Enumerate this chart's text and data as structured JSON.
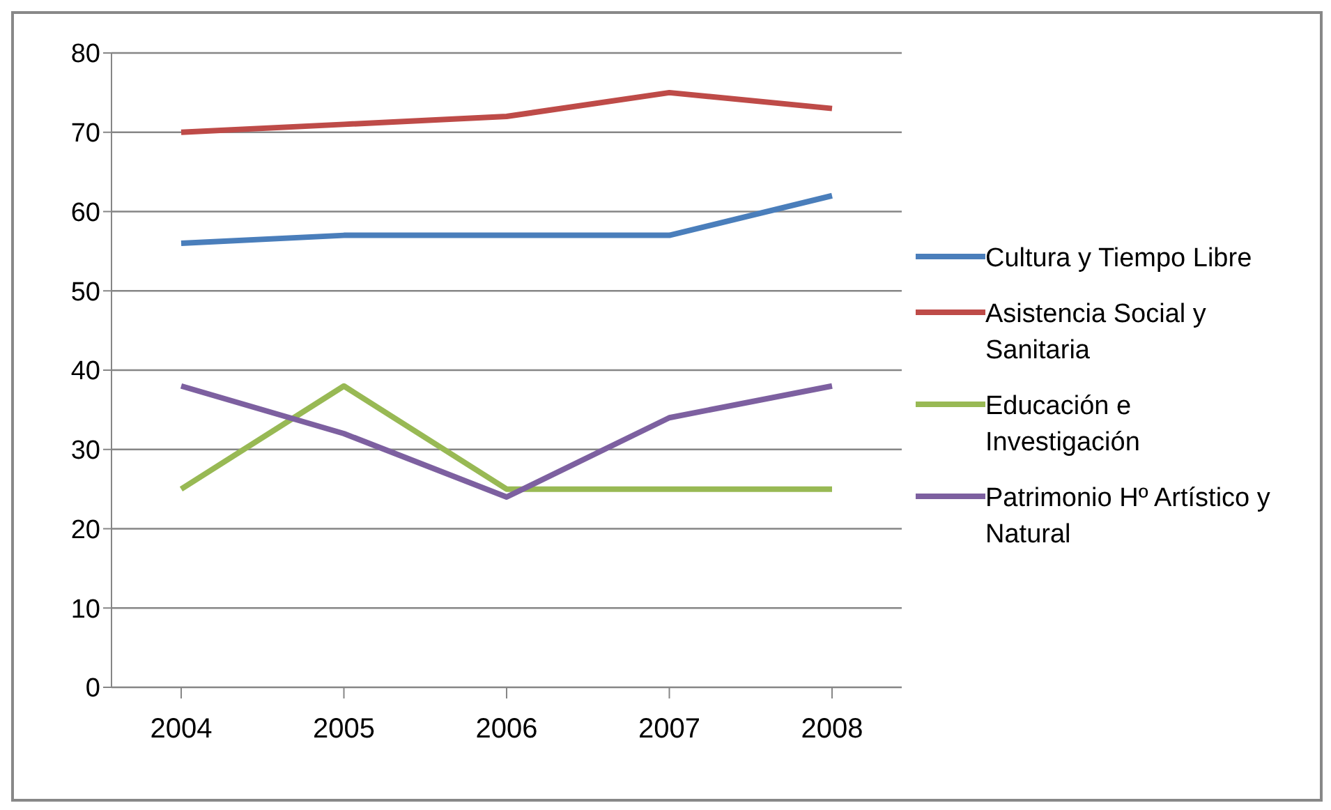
{
  "chart_data": {
    "type": "line",
    "categories": [
      "2004",
      "2005",
      "2006",
      "2007",
      "2008"
    ],
    "series": [
      {
        "name": "Cultura y Tiempo Libre",
        "color": "#4a7ebb",
        "values": [
          56,
          57,
          57,
          57,
          62
        ]
      },
      {
        "name": "Asistencia Social y Sanitaria",
        "color": "#be4b48",
        "values": [
          70,
          71,
          72,
          75,
          73
        ]
      },
      {
        "name": "Educación e Investigación",
        "color": "#98b954",
        "values": [
          25,
          38,
          25,
          25,
          25
        ]
      },
      {
        "name": "Patrimonio Hº Artístico y Natural",
        "color": "#7d60a0",
        "values": [
          38,
          32,
          24,
          34,
          38
        ]
      }
    ],
    "ylim": [
      0,
      80
    ],
    "yticks": [
      0,
      10,
      20,
      30,
      40,
      50,
      60,
      70,
      80
    ],
    "grid": "y",
    "legend": "right",
    "marker": "none",
    "line_style": "solid"
  }
}
